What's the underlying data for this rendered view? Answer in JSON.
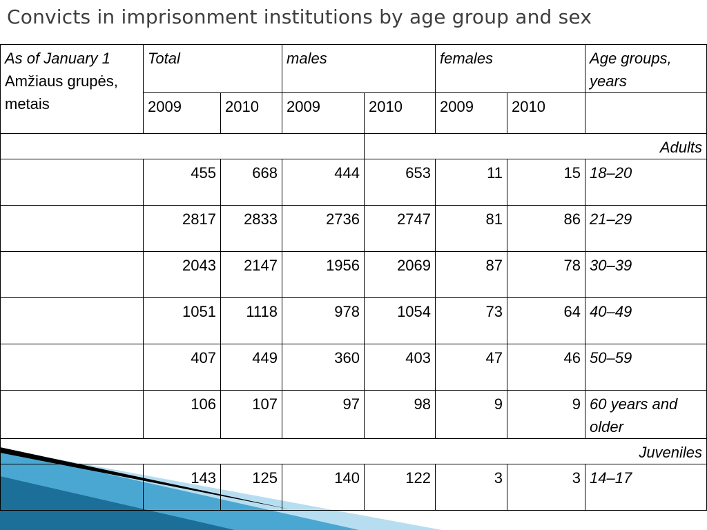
{
  "title": "Convicts in imprisonment institutions by age group and sex",
  "table": {
    "header": {
      "col1_italic": "As of January 1",
      "col1_plain": " Amžiaus grupės, metais",
      "total": "Total",
      "males": "males",
      "females": "females",
      "age_groups": "Age groups, years"
    },
    "years": [
      "2009",
      "2010",
      "2009",
      "2010",
      "2009",
      "2010"
    ],
    "sections": [
      {
        "label": "Adults",
        "rows": [
          {
            "values": [
              "455",
              "668",
              "444",
              "653",
              "11",
              "15"
            ],
            "age": "18–20"
          },
          {
            "values": [
              "2817",
              "2833",
              "2736",
              "2747",
              "81",
              "86"
            ],
            "age": "21–29"
          },
          {
            "values": [
              "2043",
              "2147",
              "1956",
              "2069",
              "87",
              "78"
            ],
            "age": "30–39"
          },
          {
            "values": [
              "1051",
              "1118",
              "978",
              "1054",
              "73",
              "64"
            ],
            "age": "40–49"
          },
          {
            "values": [
              "407",
              "449",
              "360",
              "403",
              "47",
              "46"
            ],
            "age": "50–59"
          },
          {
            "values": [
              "106",
              "107",
              "97",
              "98",
              "9",
              "9"
            ],
            "age": "60 years and older"
          }
        ]
      },
      {
        "label": "Juveniles",
        "rows": [
          {
            "values": [
              "143",
              "125",
              "140",
              "122",
              "3",
              "3"
            ],
            "age": "14–17"
          }
        ]
      }
    ]
  },
  "decoration": {
    "colors": {
      "blue_light": "#8fcbe6",
      "blue_mid": "#3a9cc9",
      "blue_dark": "#1b6f98",
      "black": "#000000"
    }
  }
}
